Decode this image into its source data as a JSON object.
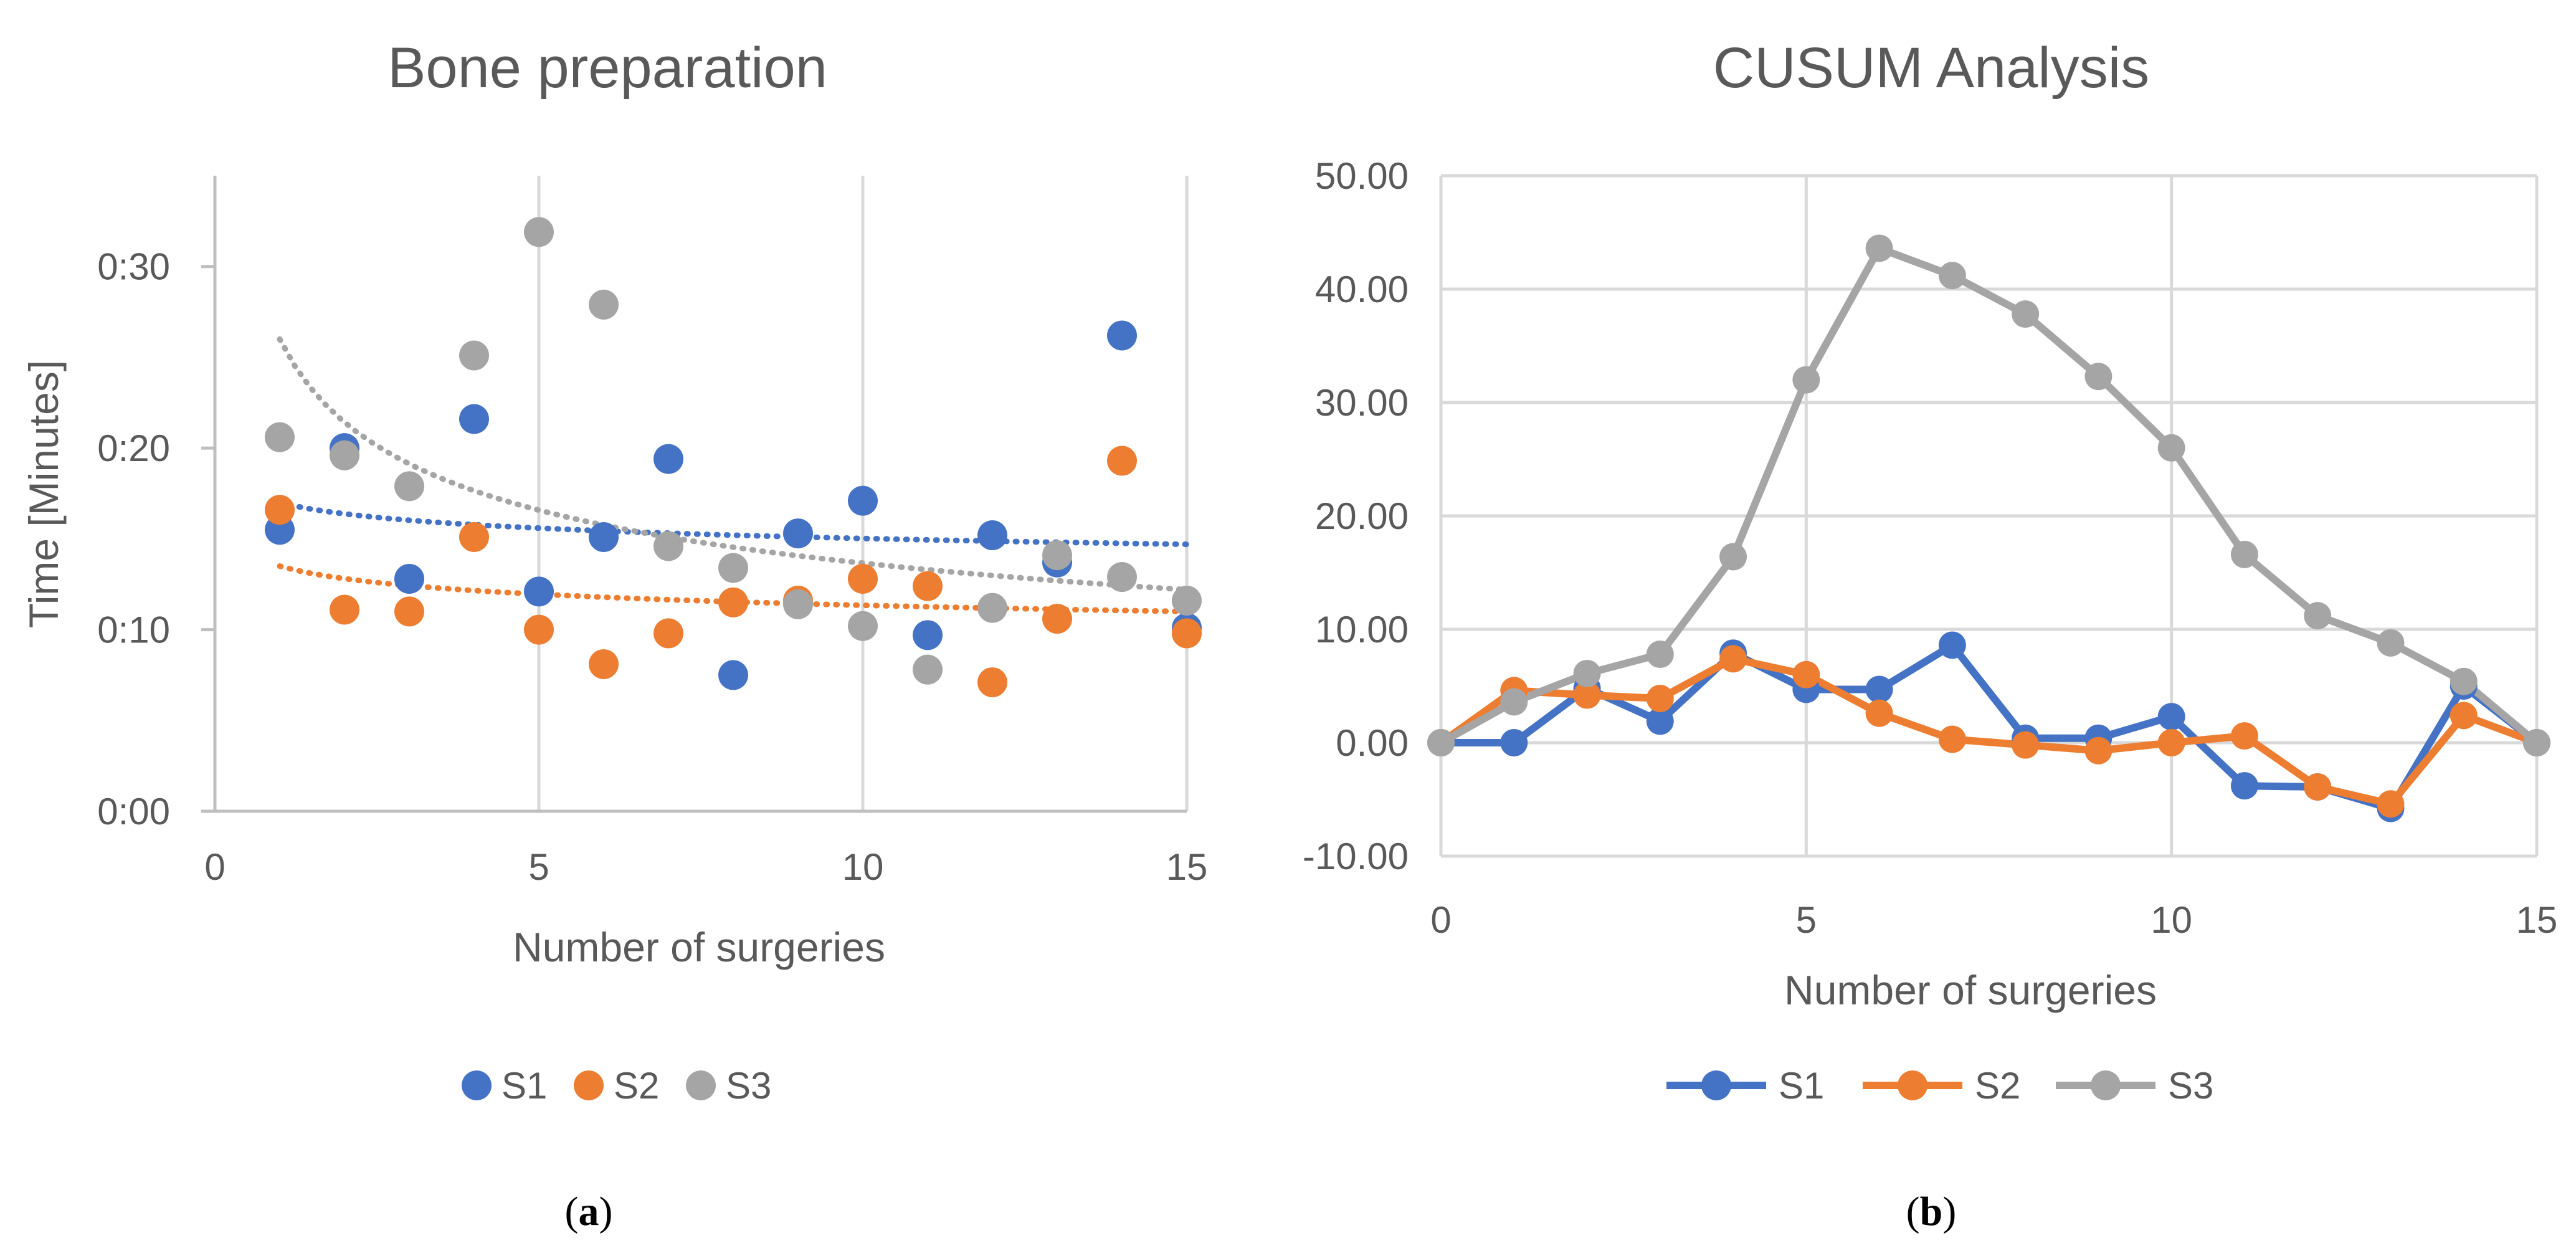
{
  "colors": {
    "S1": "#4472C4",
    "S2": "#ED7D31",
    "S3": "#A5A5A5",
    "grid": "#D9D9D9",
    "axis": "#BFBFBF"
  },
  "chart_data": [
    {
      "id": "a",
      "type": "scatter",
      "title": "Bone preparation",
      "xlabel": "Number of surgeries",
      "ylabel": "Time [Minutes]",
      "xlim": [
        0,
        15
      ],
      "ylim": [
        0,
        0.35
      ],
      "xticks": [
        0,
        5,
        10,
        15
      ],
      "xtick_labels": [
        "0",
        "5",
        "10",
        "15"
      ],
      "yticks": [
        0,
        0.1,
        0.2,
        0.3
      ],
      "ytick_labels": [
        "0:00",
        "0:10",
        "0:20",
        "0:30"
      ],
      "grid": "vertical",
      "legend_position": "bottom",
      "caption": "a",
      "series": [
        {
          "name": "S1",
          "x": [
            1,
            2,
            3,
            4,
            5,
            6,
            7,
            8,
            9,
            10,
            11,
            12,
            13,
            14,
            15
          ],
          "y": [
            0.155,
            0.2,
            0.128,
            0.216,
            0.121,
            0.151,
            0.194,
            0.075,
            0.153,
            0.171,
            0.097,
            0.152,
            0.137,
            0.262,
            0.101
          ],
          "trendline": {
            "type": "power",
            "from": 0.17,
            "to": 0.147
          }
        },
        {
          "name": "S2",
          "x": [
            1,
            2,
            3,
            4,
            5,
            6,
            7,
            8,
            9,
            10,
            11,
            12,
            13,
            14,
            15
          ],
          "y": [
            0.166,
            0.111,
            0.11,
            0.151,
            0.1,
            0.081,
            0.098,
            0.115,
            0.116,
            0.128,
            0.124,
            0.071,
            0.106,
            0.193,
            0.098
          ],
          "trendline": {
            "type": "power",
            "from": 0.135,
            "to": 0.11
          }
        },
        {
          "name": "S3",
          "x": [
            1,
            2,
            3,
            4,
            5,
            6,
            7,
            8,
            9,
            10,
            11,
            12,
            13,
            14,
            15
          ],
          "y": [
            0.206,
            0.196,
            0.179,
            0.251,
            0.319,
            0.279,
            0.146,
            0.134,
            0.114,
            0.102,
            0.078,
            0.112,
            0.141,
            0.129,
            0.116
          ],
          "trendline": {
            "type": "power",
            "from": 0.26,
            "to": 0.122
          }
        }
      ]
    },
    {
      "id": "b",
      "type": "line",
      "title": "CUSUM Analysis",
      "xlabel": "Number of surgeries",
      "ylabel": "",
      "xlim": [
        0,
        15
      ],
      "ylim": [
        -10,
        50
      ],
      "xticks": [
        0,
        5,
        10,
        15
      ],
      "xtick_labels": [
        "0",
        "5",
        "10",
        "15"
      ],
      "yticks": [
        -10,
        0,
        10,
        20,
        30,
        40,
        50
      ],
      "ytick_labels": [
        "-10.00",
        "0.00",
        "10.00",
        "20.00",
        "30.00",
        "40.00",
        "50.00"
      ],
      "grid": "both",
      "legend_position": "bottom",
      "caption": "b",
      "x": [
        0,
        1,
        2,
        3,
        4,
        5,
        6,
        7,
        8,
        9,
        10,
        11,
        12,
        13,
        14,
        15
      ],
      "series": [
        {
          "name": "S1",
          "values": [
            0.0,
            0.0,
            4.8,
            1.9,
            7.9,
            4.7,
            4.7,
            8.6,
            0.4,
            0.4,
            2.3,
            -3.8,
            -3.9,
            -5.8,
            5.0,
            0.0
          ]
        },
        {
          "name": "S2",
          "values": [
            0.0,
            4.6,
            4.2,
            3.9,
            7.4,
            6.0,
            2.6,
            0.3,
            -0.2,
            -0.7,
            0.0,
            0.6,
            -3.9,
            -5.4,
            2.4,
            0.0
          ]
        },
        {
          "name": "S3",
          "values": [
            0.0,
            3.6,
            6.1,
            7.8,
            16.4,
            32.0,
            43.6,
            41.2,
            37.8,
            32.3,
            26.0,
            16.6,
            11.2,
            8.8,
            5.4,
            0.0
          ]
        }
      ]
    }
  ]
}
